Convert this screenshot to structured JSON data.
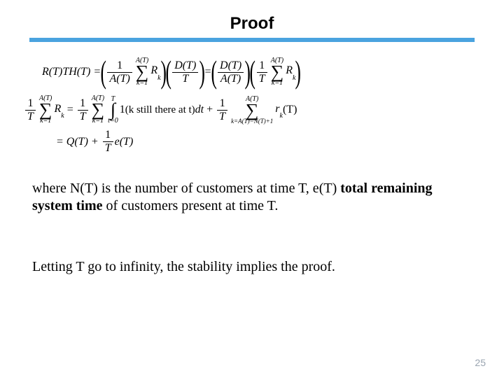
{
  "title": "Proof",
  "rule_color": "#4aa3df",
  "body1_a": "where N(T) is the number of customers at time T, e(T) ",
  "body1_b": "total remaining system time",
  "body1_c": " of customers present at time T.",
  "body2": "Letting T go to infinity, the stability implies the proof.",
  "page_number": "25",
  "page_number_color": "#9aa5b1",
  "eq": {
    "row1_lhs": "R(T)TH(T) =",
    "one": "1",
    "A_T": "A(T)",
    "k1": "k=1",
    "Rk": "R",
    "Rk_sub": "k",
    "D_T": "D(T)",
    "T": "T",
    "row2_still": "(k still there at t)",
    "dt": "dt",
    "plus": "+",
    "sum2_sub": "k=A(T)−N(T)+1",
    "rk": "r",
    "rk_sub": "k",
    "paren_T": "(T)",
    "row3": "= Q(T) +",
    "eT": "e(T)"
  }
}
